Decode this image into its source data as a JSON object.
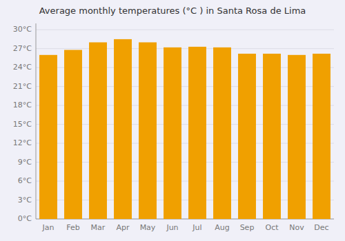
{
  "chart_data": {
    "type": "bar",
    "title": "Average monthly temperatures (°C ) in Santa Rosa de Lima",
    "categories": [
      "Jan",
      "Feb",
      "Mar",
      "Apr",
      "May",
      "Jun",
      "Jul",
      "Aug",
      "Sep",
      "Oct",
      "Nov",
      "Dec"
    ],
    "values": [
      26.0,
      26.8,
      28.0,
      28.5,
      28.0,
      27.2,
      27.3,
      27.2,
      26.2,
      26.2,
      26.0,
      26.2
    ],
    "color": "#F0A000",
    "ylim": [
      0,
      31
    ],
    "yticks": [
      {
        "value": 0,
        "label": "0°C"
      },
      {
        "value": 3,
        "label": "3°C"
      },
      {
        "value": 6,
        "label": "6°C"
      },
      {
        "value": 9,
        "label": "9°C"
      },
      {
        "value": 12,
        "label": "12°C"
      },
      {
        "value": 15,
        "label": "15°C"
      },
      {
        "value": 18,
        "label": "18°C"
      },
      {
        "value": 21,
        "label": "21°C"
      },
      {
        "value": 24,
        "label": "24°C"
      },
      {
        "value": 27,
        "label": "27°C"
      },
      {
        "value": 30,
        "label": "30°C"
      }
    ],
    "grid": true
  }
}
